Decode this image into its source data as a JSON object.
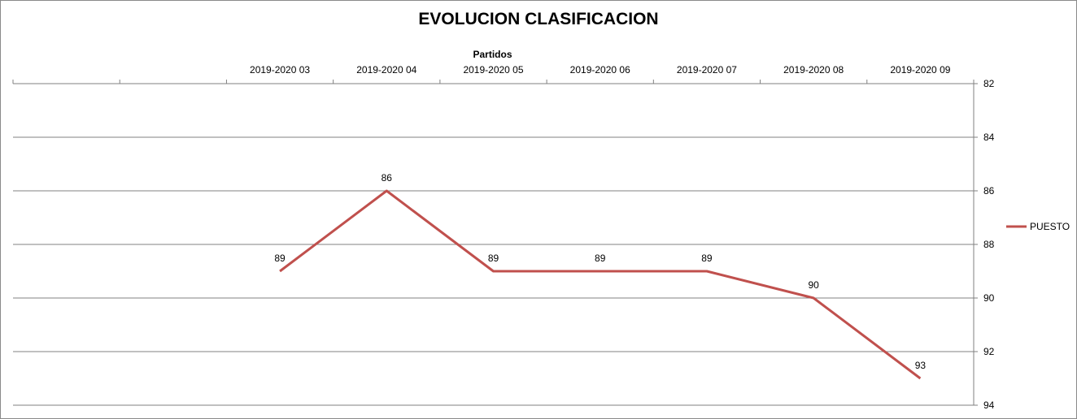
{
  "chart_data": {
    "type": "line",
    "title": "EVOLUCION CLASIFICACION",
    "xlabel": "Partidos",
    "ylabel": "",
    "categories": [
      "",
      "",
      "2019-2020 03",
      "2019-2020 04",
      "2019-2020 05",
      "2019-2020 06",
      "2019-2020 07",
      "2019-2020 08",
      "2019-2020 09"
    ],
    "x_axis_position": "top",
    "y_axis_position": "right",
    "y_inverted": true,
    "ylim": [
      82,
      94
    ],
    "yticks": [
      82,
      84,
      86,
      88,
      90,
      92,
      94
    ],
    "grid": true,
    "legend_position": "right",
    "series": [
      {
        "name": "PUESTO",
        "color": "#c0504d",
        "values": [
          null,
          null,
          89,
          86,
          89,
          89,
          89,
          90,
          93
        ]
      }
    ]
  }
}
